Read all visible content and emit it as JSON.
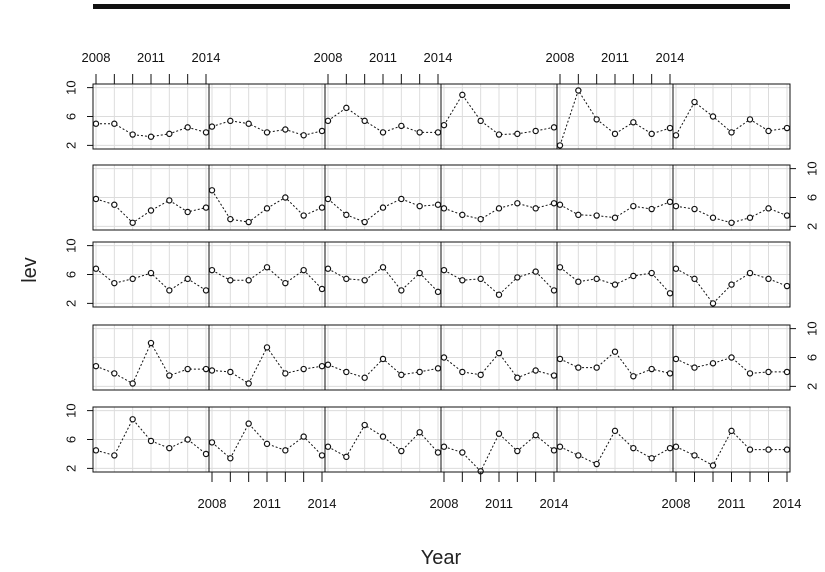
{
  "chart_data": {
    "type": "line",
    "layout": "lattice 6 columns x 5 rows",
    "xlabel": "Year",
    "ylabel": "lev",
    "x": [
      2008,
      2009,
      2010,
      2011,
      2012,
      2013,
      2014
    ],
    "x_ticks": [
      2008,
      2011,
      2014
    ],
    "y_ticks": [
      2,
      6,
      10
    ],
    "xlim": [
      2008,
      2014
    ],
    "ylim": [
      1.5,
      10.5
    ],
    "grid": true,
    "rows": [
      [
        [
          5.0,
          5.0,
          3.5,
          3.2,
          3.6,
          4.5,
          3.8
        ],
        [
          4.6,
          5.4,
          5.0,
          3.8,
          4.2,
          3.4,
          4.0
        ],
        [
          5.4,
          7.2,
          5.4,
          3.8,
          4.7,
          3.8,
          3.8
        ],
        [
          4.8,
          9.0,
          5.4,
          3.5,
          3.6,
          4.0,
          4.5
        ],
        [
          2.0,
          9.6,
          5.6,
          3.6,
          5.2,
          3.6,
          4.4
        ],
        [
          3.4,
          8.0,
          6.0,
          3.8,
          5.6,
          4.0,
          4.4
        ]
      ],
      [
        [
          5.8,
          5.0,
          2.5,
          4.2,
          5.6,
          4.0,
          4.6
        ],
        [
          7.0,
          3.0,
          2.6,
          4.5,
          6.0,
          3.5,
          4.6
        ],
        [
          5.8,
          3.6,
          2.6,
          4.6,
          5.8,
          4.8,
          5.0
        ],
        [
          4.5,
          3.6,
          3.0,
          4.5,
          5.2,
          4.5,
          5.2
        ],
        [
          5.0,
          3.6,
          3.5,
          3.2,
          4.8,
          4.4,
          5.4
        ],
        [
          4.8,
          4.4,
          3.2,
          2.5,
          3.2,
          4.5,
          3.5
        ]
      ],
      [
        [
          6.8,
          4.8,
          5.4,
          6.2,
          3.8,
          5.4,
          3.8
        ],
        [
          6.6,
          5.2,
          5.2,
          7.0,
          4.8,
          6.6,
          4.0
        ],
        [
          6.8,
          5.4,
          5.2,
          7.0,
          3.8,
          6.2,
          3.6
        ],
        [
          6.6,
          5.2,
          5.4,
          3.2,
          5.6,
          6.4,
          3.8
        ],
        [
          7.0,
          5.0,
          5.4,
          4.6,
          5.8,
          6.2,
          3.4
        ],
        [
          6.8,
          5.4,
          2.0,
          4.6,
          6.2,
          5.4,
          4.4
        ]
      ],
      [
        [
          4.8,
          3.8,
          2.4,
          8.0,
          3.5,
          4.4,
          4.4
        ],
        [
          4.2,
          4.0,
          2.4,
          7.4,
          3.8,
          4.4,
          4.8
        ],
        [
          5.0,
          4.0,
          3.2,
          5.8,
          3.6,
          4.0,
          4.5
        ],
        [
          6.0,
          4.0,
          3.6,
          6.6,
          3.2,
          4.2,
          3.5
        ],
        [
          5.8,
          4.6,
          4.6,
          6.8,
          3.4,
          4.4,
          3.8
        ],
        [
          5.8,
          4.6,
          5.2,
          6.0,
          3.8,
          4.0,
          4.0
        ]
      ],
      [
        [
          4.5,
          3.8,
          8.8,
          5.8,
          4.8,
          6.0,
          4.0
        ],
        [
          5.6,
          3.4,
          8.2,
          5.4,
          4.5,
          6.4,
          3.8
        ],
        [
          5.0,
          3.6,
          8.0,
          6.4,
          4.4,
          7.0,
          4.2
        ],
        [
          5.0,
          4.2,
          1.6,
          6.8,
          4.4,
          6.6,
          4.5
        ],
        [
          5.0,
          3.8,
          2.6,
          7.2,
          4.8,
          3.4,
          4.8
        ],
        [
          5.0,
          3.8,
          2.4,
          7.2,
          4.6,
          4.6,
          4.6
        ]
      ]
    ]
  }
}
